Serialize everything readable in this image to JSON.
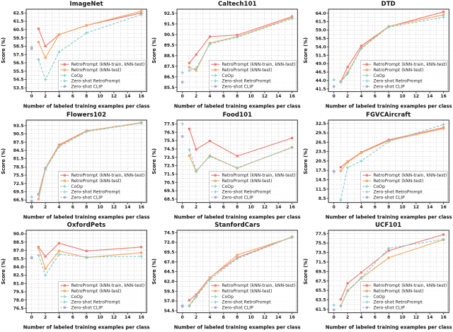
{
  "page": {
    "background": "#ffffff"
  },
  "colors": {
    "retro_train_test": "#f3756c",
    "retro_test": "#f8a45f",
    "coop": "#7fcdc7",
    "zero_shot_retro": "#7fcdc7",
    "zero_shot_clip": "#a8a3d5",
    "grid": "#cdcdcd",
    "spine": "#2b2b2b",
    "tick_text": "#1a1a1a"
  },
  "charts_common": {
    "xlabel": "Number of labeled training examples per class",
    "ylabel": "Score (%)",
    "x_ticks": [
      0,
      2,
      4,
      6,
      8,
      10,
      12,
      14,
      16
    ],
    "xlim": [
      -0.8,
      16.8
    ],
    "shots_x": [
      1,
      2,
      4,
      8,
      16
    ],
    "legend_labels": [
      "RetroPrompt (kNN-train, kNN-test)",
      "RetroPrompt (kNN-test)",
      "CoOp",
      "Zero-shot RetroPrompt",
      "Zero-shot CLIP"
    ],
    "legend_position": "lower right",
    "grid_on": true
  },
  "chart_data": [
    {
      "type": "line",
      "title": "ImageNet",
      "y_ticks": [
        53.5,
        54.5,
        55.5,
        56.5,
        57.5,
        58.5,
        59.5,
        60.5,
        61.5,
        62.5
      ],
      "ylim": [
        53.05,
        62.95
      ],
      "series": [
        {
          "name": "RetroPrompt (kNN-train, kNN-test)",
          "key": "retro_train_test",
          "x": [
            1,
            2,
            4,
            8,
            16
          ],
          "values": [
            60.6,
            58.5,
            59.9,
            61.0,
            62.5
          ]
        },
        {
          "name": "RetroPrompt (kNN-test)",
          "key": "retro_test",
          "x": [
            1,
            2,
            4,
            8,
            16
          ],
          "values": [
            59.0,
            57.1,
            59.9,
            61.0,
            62.7
          ]
        },
        {
          "name": "CoOp",
          "key": "coop",
          "x": [
            1,
            2,
            4,
            8,
            16
          ],
          "values": [
            56.9,
            54.5,
            57.8,
            60.1,
            62.3
          ]
        },
        {
          "name": "Zero-shot RetroPrompt",
          "key": "zero_shot_retro",
          "x": [
            0
          ],
          "values": [
            58.4
          ]
        },
        {
          "name": "Zero-shot CLIP",
          "key": "zero_shot_clip",
          "x": [
            0
          ],
          "values": [
            58.2
          ]
        }
      ]
    },
    {
      "type": "line",
      "title": "Caltech101",
      "y_ticks": [
        85.5,
        86.5,
        87.5,
        88.5,
        89.5,
        90.5,
        91.5,
        92.5
      ],
      "ylim": [
        85.1,
        92.9
      ],
      "series": [
        {
          "name": "RetroPrompt (kNN-train, kNN-test)",
          "key": "retro_train_test",
          "x": [
            1,
            2,
            4,
            8,
            16
          ],
          "values": [
            87.8,
            88.6,
            90.3,
            90.45,
            92.2
          ]
        },
        {
          "name": "RetroPrompt (kNN-test)",
          "key": "retro_test",
          "x": [
            1,
            2,
            4,
            8,
            16
          ],
          "values": [
            87.4,
            87.1,
            89.7,
            90.3,
            92.1
          ]
        },
        {
          "name": "CoOp",
          "key": "coop",
          "x": [
            1,
            2,
            4,
            8,
            16
          ],
          "values": [
            87.1,
            87.3,
            89.6,
            90.25,
            92.0
          ]
        },
        {
          "name": "Zero-shot RetroPrompt",
          "key": "zero_shot_retro",
          "x": [
            0
          ],
          "values": [
            86.9
          ]
        },
        {
          "name": "Zero-shot CLIP",
          "key": "zero_shot_clip",
          "x": [
            0
          ],
          "values": [
            86.0
          ]
        }
      ]
    },
    {
      "type": "line",
      "title": "DTD",
      "y_ticks": [
        41.5,
        44.0,
        46.5,
        49.0,
        51.5,
        54.0,
        56.5,
        59.0,
        61.5,
        64.0
      ],
      "ylim": [
        40.7,
        65.2
      ],
      "series": [
        {
          "name": "RetroPrompt (kNN-train, kNN-test)",
          "key": "retro_train_test",
          "x": [
            1,
            2,
            4,
            8,
            16
          ],
          "values": [
            43.7,
            48.0,
            54.3,
            60.0,
            64.4
          ]
        },
        {
          "name": "RetroPrompt (kNN-test)",
          "key": "retro_test",
          "x": [
            1,
            2,
            4,
            8,
            16
          ],
          "values": [
            43.6,
            46.3,
            53.7,
            60.1,
            63.5
          ]
        },
        {
          "name": "CoOp",
          "key": "coop",
          "x": [
            1,
            2,
            4,
            8,
            16
          ],
          "values": [
            43.5,
            46.0,
            53.5,
            59.9,
            62.8
          ]
        },
        {
          "name": "Zero-shot RetroPrompt",
          "key": "zero_shot_retro",
          "x": [
            0
          ],
          "values": [
            44.2
          ]
        },
        {
          "name": "Zero-shot CLIP",
          "key": "zero_shot_clip",
          "x": [
            0
          ],
          "values": [
            42.2
          ]
        }
      ]
    },
    {
      "type": "line",
      "title": "Flowers102",
      "y_ticks": [
        66.5,
        69.5,
        72.5,
        75.5,
        78.5,
        81.5,
        84.5,
        87.5,
        90.5,
        93.5
      ],
      "ylim": [
        65.6,
        95.5
      ],
      "series": [
        {
          "name": "RetroPrompt (kNN-train, kNN-test)",
          "key": "retro_train_test",
          "x": [
            1,
            2,
            4,
            8,
            16
          ],
          "values": [
            68.6,
            78.0,
            86.5,
            91.6,
            94.5
          ]
        },
        {
          "name": "RetroPrompt (kNN-test)",
          "key": "retro_test",
          "x": [
            1,
            2,
            4,
            8,
            16
          ],
          "values": [
            66.8,
            77.8,
            86.2,
            91.5,
            94.6
          ]
        },
        {
          "name": "CoOp",
          "key": "coop",
          "x": [
            1,
            2,
            4,
            8,
            16
          ],
          "values": [
            68.4,
            77.6,
            85.8,
            91.3,
            94.4
          ]
        },
        {
          "name": "Zero-shot RetroPrompt",
          "key": "zero_shot_retro",
          "x": [
            0
          ],
          "values": [
            67.6
          ]
        },
        {
          "name": "Zero-shot CLIP",
          "key": "zero_shot_clip",
          "x": [
            0
          ],
          "values": [
            66.1
          ]
        }
      ]
    },
    {
      "type": "line",
      "title": "Food101",
      "y_ticks": [
        68.5,
        69.5,
        70.5,
        71.5,
        72.5,
        73.5,
        74.5,
        75.5,
        76.5,
        77.5
      ],
      "ylim": [
        68.1,
        77.95
      ],
      "series": [
        {
          "name": "RetroPrompt (kNN-train, kNN-test)",
          "key": "retro_train_test",
          "x": [
            1,
            2,
            4,
            8,
            16
          ],
          "values": [
            76.9,
            74.45,
            75.45,
            73.65,
            75.8
          ]
        },
        {
          "name": "RetroPrompt (kNN-test)",
          "key": "retro_test",
          "x": [
            1,
            2,
            4,
            8,
            16
          ],
          "values": [
            73.7,
            71.8,
            73.7,
            72.2,
            74.7
          ]
        },
        {
          "name": "CoOp",
          "key": "coop",
          "x": [
            1,
            2,
            4,
            8,
            16
          ],
          "values": [
            74.4,
            71.9,
            73.6,
            72.25,
            74.65
          ]
        },
        {
          "name": "Zero-shot RetroPrompt",
          "key": "zero_shot_retro",
          "x": [
            0
          ],
          "values": [
            77.5
          ]
        },
        {
          "name": "Zero-shot CLIP",
          "key": "zero_shot_clip",
          "x": [
            0
          ],
          "values": [
            76.0
          ]
        }
      ]
    },
    {
      "type": "line",
      "title": "FGVCAircraft",
      "y_ticks": [
        8.5,
        11.5,
        14.5,
        17.5,
        20.5,
        23.5,
        26.5,
        29.5,
        32.5
      ],
      "ylim": [
        7.2,
        33.6
      ],
      "series": [
        {
          "name": "RetroPrompt (kNN-train, kNN-test)",
          "key": "retro_train_test",
          "x": [
            1,
            2,
            4,
            8,
            16
          ],
          "values": [
            18.5,
            20.3,
            23.3,
            27.3,
            31.2
          ]
        },
        {
          "name": "RetroPrompt (kNN-test)",
          "key": "retro_test",
          "x": [
            1,
            2,
            4,
            8,
            16
          ],
          "values": [
            17.3,
            20.1,
            23.1,
            27.0,
            30.9
          ]
        },
        {
          "name": "CoOp",
          "key": "coop",
          "x": [
            1,
            2,
            4,
            8,
            16
          ],
          "values": [
            8.0,
            18.4,
            20.5,
            26.7,
            32.2
          ]
        },
        {
          "name": "Zero-shot RetroPrompt",
          "key": "zero_shot_retro",
          "x": [
            0
          ],
          "values": [
            17.2
          ]
        },
        {
          "name": "Zero-shot CLIP",
          "key": "zero_shot_clip",
          "x": [
            0
          ],
          "values": [
            17.1
          ]
        }
      ]
    },
    {
      "type": "line",
      "title": "OxfordPets",
      "y_ticks": [
        76.5,
        78.0,
        79.5,
        81.0,
        82.5,
        84.0,
        85.5,
        87.0,
        88.5,
        90.0
      ],
      "ylim": [
        75.7,
        90.65
      ],
      "series": [
        {
          "name": "RetroPrompt (kNN-train, kNN-test)",
          "key": "retro_train_test",
          "x": [
            1,
            2,
            4,
            8,
            16
          ],
          "values": [
            87.6,
            85.9,
            88.3,
            86.9,
            87.6
          ]
        },
        {
          "name": "RetroPrompt (kNN-test)",
          "key": "retro_test",
          "x": [
            1,
            2,
            4,
            8,
            16
          ],
          "values": [
            87.4,
            83.7,
            86.9,
            85.7,
            86.6
          ]
        },
        {
          "name": "CoOp",
          "key": "coop",
          "x": [
            1,
            2,
            4,
            8,
            16
          ],
          "values": [
            86.1,
            82.5,
            86.3,
            85.8,
            85.9
          ]
        },
        {
          "name": "Zero-shot RetroPrompt",
          "key": "zero_shot_retro",
          "x": [
            0
          ],
          "values": [
            85.8
          ]
        },
        {
          "name": "Zero-shot CLIP",
          "key": "zero_shot_clip",
          "x": [
            0
          ],
          "values": [
            85.6
          ]
        }
      ]
    },
    {
      "type": "line",
      "title": "StanfordCars",
      "y_ticks": [
        54.5,
        57.0,
        59.5,
        62.0,
        64.5,
        67.0,
        69.5,
        72.0,
        74.5
      ],
      "ylim": [
        54.0,
        75.1
      ],
      "series": [
        {
          "name": "RetroPrompt (kNN-train, kNN-test)",
          "key": "retro_train_test",
          "x": [
            1,
            2,
            4,
            8,
            16
          ],
          "values": [
            57.2,
            58.6,
            63.0,
            68.1,
            73.4
          ]
        },
        {
          "name": "RetroPrompt (kNN-test)",
          "key": "retro_test",
          "x": [
            1,
            2,
            4,
            8,
            16
          ],
          "values": [
            55.8,
            58.3,
            62.9,
            68.8,
            73.3
          ]
        },
        {
          "name": "CoOp",
          "key": "coop",
          "x": [
            1,
            2,
            4,
            8,
            16
          ],
          "values": [
            55.7,
            58.0,
            62.5,
            67.8,
            73.4
          ]
        },
        {
          "name": "Zero-shot RetroPrompt",
          "key": "zero_shot_retro",
          "x": [
            0
          ],
          "values": [
            55.9
          ]
        },
        {
          "name": "Zero-shot CLIP",
          "key": "zero_shot_clip",
          "x": [
            0
          ],
          "values": [
            55.6
          ]
        }
      ]
    },
    {
      "type": "line",
      "title": "UCF101",
      "y_ticks": [
        61.5,
        63.5,
        65.5,
        67.5,
        69.5,
        71.5,
        73.5,
        75.5,
        77.5
      ],
      "ylim": [
        60.8,
        78.2
      ],
      "series": [
        {
          "name": "RetroPrompt (kNN-train, kNN-test)",
          "key": "retro_train_test",
          "x": [
            1,
            2,
            4,
            8,
            16
          ],
          "values": [
            63.6,
            67.0,
            69.3,
            73.9,
            77.3
          ]
        },
        {
          "name": "RetroPrompt (kNN-test)",
          "key": "retro_test",
          "x": [
            1,
            2,
            4,
            8,
            16
          ],
          "values": [
            62.2,
            65.4,
            68.1,
            72.4,
            76.2
          ]
        },
        {
          "name": "CoOp",
          "key": "coop",
          "x": [
            1,
            2,
            4,
            8,
            16
          ],
          "values": [
            62.3,
            65.5,
            68.2,
            74.4,
            76.3
          ]
        },
        {
          "name": "Zero-shot RetroPrompt",
          "key": "zero_shot_retro",
          "x": [
            0
          ],
          "values": [
            62.4
          ]
        },
        {
          "name": "Zero-shot CLIP",
          "key": "zero_shot_clip",
          "x": [
            0
          ],
          "values": [
            61.4
          ]
        }
      ]
    }
  ]
}
